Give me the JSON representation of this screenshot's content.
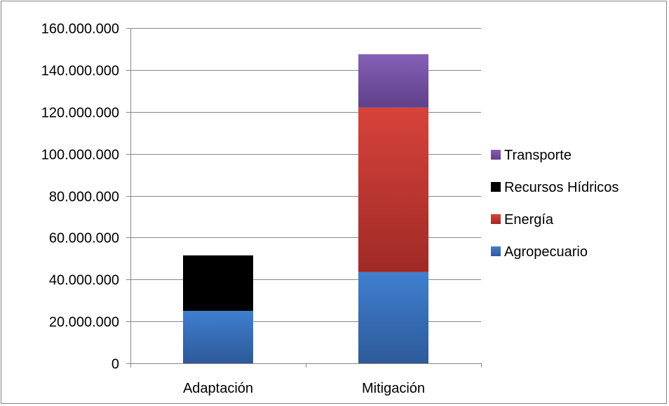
{
  "chart_data": {
    "type": "bar",
    "stacked": true,
    "categories": [
      "Adaptación",
      "Mitigación"
    ],
    "series": [
      {
        "name": "Agropecuario",
        "values": [
          25000000,
          43500000
        ],
        "color": "#3a6db5"
      },
      {
        "name": "Energía",
        "values": [
          0,
          78500000
        ],
        "color": "#c0392b"
      },
      {
        "name": "Recursos Hídricos",
        "values": [
          26500000,
          0
        ],
        "color": "#8ab33f"
      },
      {
        "name": "Transporte",
        "values": [
          0,
          25500000
        ],
        "color": "#7a56a5"
      }
    ],
    "ylim": [
      0,
      160000000
    ],
    "yticks": [
      "0",
      "20.000.000",
      "40.000.000",
      "60.000.000",
      "80.000.000",
      "100.000.000",
      "120.000.000",
      "140.000.000",
      "160.000.000"
    ],
    "grid": true,
    "legend_position": "right",
    "legend_order": [
      "Transporte",
      "Recursos Hídricos",
      "Energía",
      "Agropecuario"
    ]
  }
}
